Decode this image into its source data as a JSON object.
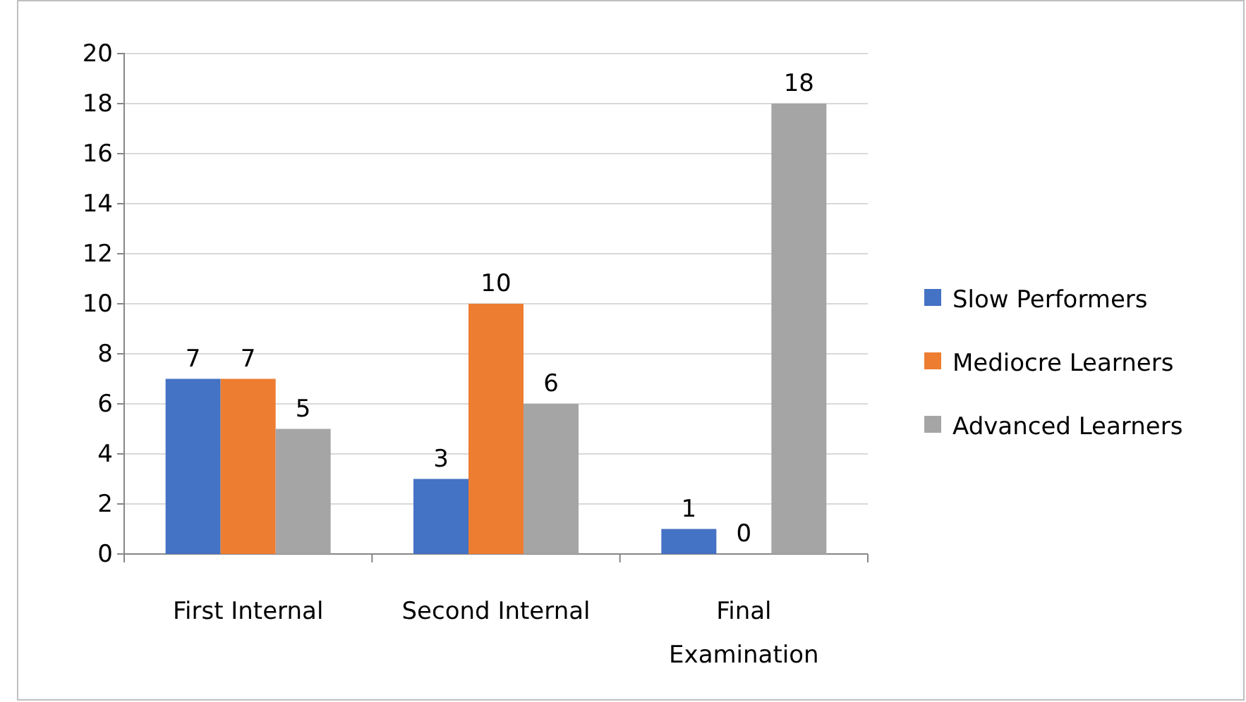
{
  "chart_data": {
    "type": "bar",
    "categories": [
      "First Internal",
      "Second Internal",
      "Final Examination"
    ],
    "series": [
      {
        "name": "Slow Performers",
        "color": "#4472c4",
        "values": [
          7,
          3,
          1
        ]
      },
      {
        "name": "Mediocre Learners",
        "color": "#ed7d31",
        "values": [
          7,
          10,
          0
        ]
      },
      {
        "name": "Advanced Learners",
        "color": "#a5a5a5",
        "values": [
          5,
          6,
          18
        ]
      }
    ],
    "ylim": [
      0,
      20
    ],
    "yticks": [
      0,
      2,
      4,
      6,
      8,
      10,
      12,
      14,
      16,
      18,
      20
    ],
    "grid": "y",
    "legend": "right",
    "data_labels": true
  }
}
